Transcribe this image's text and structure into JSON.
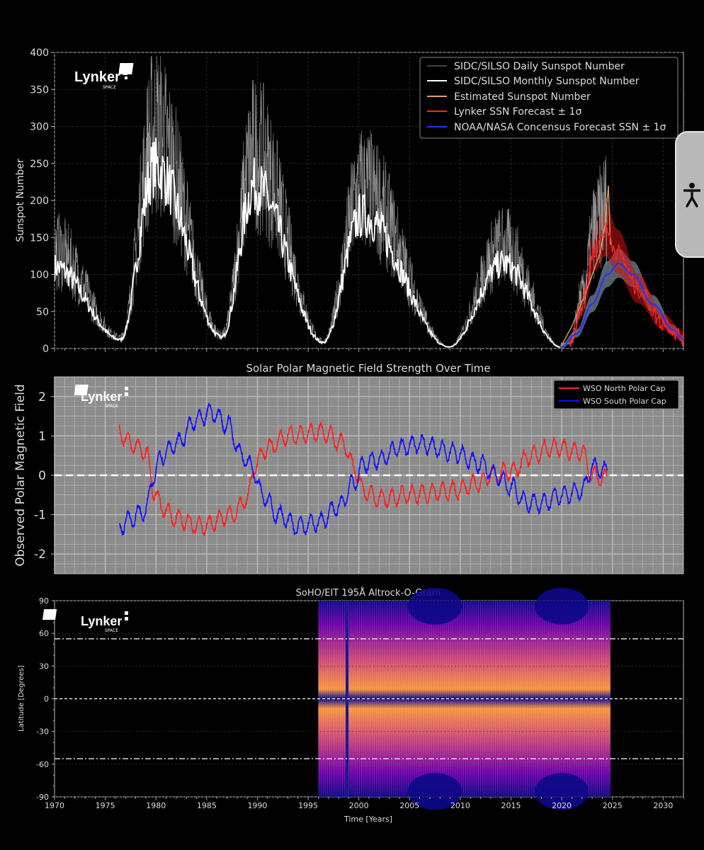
{
  "brand": {
    "name": "Lynker",
    "sub": "SPACE"
  },
  "chart_data": [
    {
      "type": "line",
      "title": "",
      "xlabel": "",
      "ylabel": "Sunspot Number",
      "xlim": [
        1970,
        2032
      ],
      "ylim": [
        0,
        400
      ],
      "yticks": [
        0,
        50,
        100,
        150,
        200,
        250,
        300,
        350,
        400
      ],
      "legend_position": "top-right",
      "grid": true,
      "legend": [
        "SIDC/SILSO Daily Sunspot Number",
        "SIDC/SILSO Monthly Sunspot Number",
        "Estimated Sunspot Number",
        "Lynker SSN Forecast ± 1σ",
        "NOAA/NASA Concensus Forecast SSN ± 1σ"
      ],
      "colors": [
        "#888888",
        "#ffffff",
        "#e0a060",
        "#ff2222",
        "#2233ff"
      ],
      "monthly_peaks": [
        {
          "x": 1970.0,
          "y": 110
        },
        {
          "x": 1976.5,
          "y": 12
        },
        {
          "x": 1979.9,
          "y": 245
        },
        {
          "x": 1986.5,
          "y": 15
        },
        {
          "x": 1989.7,
          "y": 220
        },
        {
          "x": 1996.5,
          "y": 8
        },
        {
          "x": 2000.3,
          "y": 180
        },
        {
          "x": 2008.9,
          "y": 2
        },
        {
          "x": 2014.2,
          "y": 115
        },
        {
          "x": 2019.9,
          "y": 2
        }
      ],
      "lynker_forecast": [
        {
          "x": 2020.8,
          "y": 5
        },
        {
          "x": 2022.0,
          "y": 60
        },
        {
          "x": 2023.3,
          "y": 135
        },
        {
          "x": 2024.3,
          "y": 160
        },
        {
          "x": 2025.5,
          "y": 130
        },
        {
          "x": 2027.5,
          "y": 80
        },
        {
          "x": 2030.0,
          "y": 35
        },
        {
          "x": 2032.0,
          "y": 15
        }
      ],
      "noaa_forecast": [
        {
          "x": 2019.9,
          "y": 2
        },
        {
          "x": 2021.5,
          "y": 20
        },
        {
          "x": 2023.0,
          "y": 60
        },
        {
          "x": 2024.5,
          "y": 100
        },
        {
          "x": 2025.6,
          "y": 115
        },
        {
          "x": 2027.0,
          "y": 100
        },
        {
          "x": 2029.0,
          "y": 60
        },
        {
          "x": 2031.0,
          "y": 25
        },
        {
          "x": 2032.0,
          "y": 12
        }
      ],
      "estimated_spike": {
        "x": 2024.6,
        "y": 220
      }
    },
    {
      "type": "line",
      "title": "Solar Polar Magnetic Field Strength Over Time",
      "xlabel": "",
      "ylabel": "Observed Polar Magnetic Field",
      "xlim": [
        1970,
        2032
      ],
      "ylim": [
        -2.5,
        2.5
      ],
      "yticks": [
        -2,
        -1,
        0,
        1,
        2
      ],
      "grid": true,
      "background": "#8c8c8c",
      "legend_position": "top-right",
      "series": [
        {
          "name": "WSO North Polar Cap",
          "color": "#ff2020",
          "points": [
            [
              1976.4,
              1.1
            ],
            [
              1977.5,
              0.8
            ],
            [
              1979.0,
              0.6
            ],
            [
              1979.8,
              -0.4
            ],
            [
              1980.5,
              -0.8
            ],
            [
              1982.0,
              -1.1
            ],
            [
              1984.5,
              -1.3
            ],
            [
              1987.5,
              -1.0
            ],
            [
              1989.0,
              -0.6
            ],
            [
              1989.8,
              0.3
            ],
            [
              1991.0,
              0.7
            ],
            [
              1993.0,
              1.0
            ],
            [
              1996.5,
              1.1
            ],
            [
              1998.5,
              0.8
            ],
            [
              1999.5,
              0.2
            ],
            [
              2000.5,
              -0.4
            ],
            [
              2002.0,
              -0.6
            ],
            [
              2005.0,
              -0.5
            ],
            [
              2009.0,
              -0.4
            ],
            [
              2012.0,
              -0.2
            ],
            [
              2013.0,
              0.0
            ],
            [
              2015.0,
              0.1
            ],
            [
              2017.0,
              0.5
            ],
            [
              2019.0,
              0.7
            ],
            [
              2022.0,
              0.6
            ],
            [
              2023.0,
              0.0
            ],
            [
              2024.5,
              -0.1
            ]
          ]
        },
        {
          "name": "WSO South Polar Cap",
          "color": "#1010ff",
          "points": [
            [
              1976.4,
              -1.3
            ],
            [
              1977.5,
              -1.1
            ],
            [
              1979.0,
              -0.9
            ],
            [
              1979.8,
              0.0
            ],
            [
              1980.5,
              0.5
            ],
            [
              1982.0,
              0.8
            ],
            [
              1984.0,
              1.4
            ],
            [
              1985.5,
              1.6
            ],
            [
              1987.0,
              1.3
            ],
            [
              1988.5,
              0.5
            ],
            [
              1989.5,
              0.2
            ],
            [
              1990.5,
              -0.5
            ],
            [
              1992.0,
              -1.0
            ],
            [
              1994.0,
              -1.3
            ],
            [
              1996.0,
              -1.2
            ],
            [
              1998.0,
              -0.8
            ],
            [
              1999.5,
              -0.2
            ],
            [
              2000.5,
              0.3
            ],
            [
              2002.0,
              0.4
            ],
            [
              2004.0,
              0.7
            ],
            [
              2006.0,
              0.8
            ],
            [
              2009.0,
              0.6
            ],
            [
              2012.0,
              0.3
            ],
            [
              2013.5,
              0.0
            ],
            [
              2015.0,
              -0.3
            ],
            [
              2016.5,
              -0.7
            ],
            [
              2018.0,
              -0.7
            ],
            [
              2020.0,
              -0.5
            ],
            [
              2022.0,
              -0.4
            ],
            [
              2023.0,
              0.2
            ],
            [
              2024.5,
              0.1
            ]
          ]
        }
      ]
    },
    {
      "type": "heatmap",
      "title": "SoHO/EIT 195Å Altrock-O-Gram",
      "xlabel": "Time [Years]",
      "ylabel": "Latitude [Degrees]",
      "xlim": [
        1970,
        2032
      ],
      "ylim": [
        -90,
        90
      ],
      "yticks": [
        -90,
        -60,
        -30,
        0,
        30,
        60,
        90
      ],
      "xticks": [
        1970,
        1975,
        1980,
        1985,
        1990,
        1995,
        2000,
        2005,
        2010,
        2015,
        2020,
        2025,
        2030
      ],
      "data_range": [
        1996,
        2024.8
      ],
      "reference_lines": [
        55,
        0,
        -55
      ],
      "colormap": "plasma"
    }
  ]
}
